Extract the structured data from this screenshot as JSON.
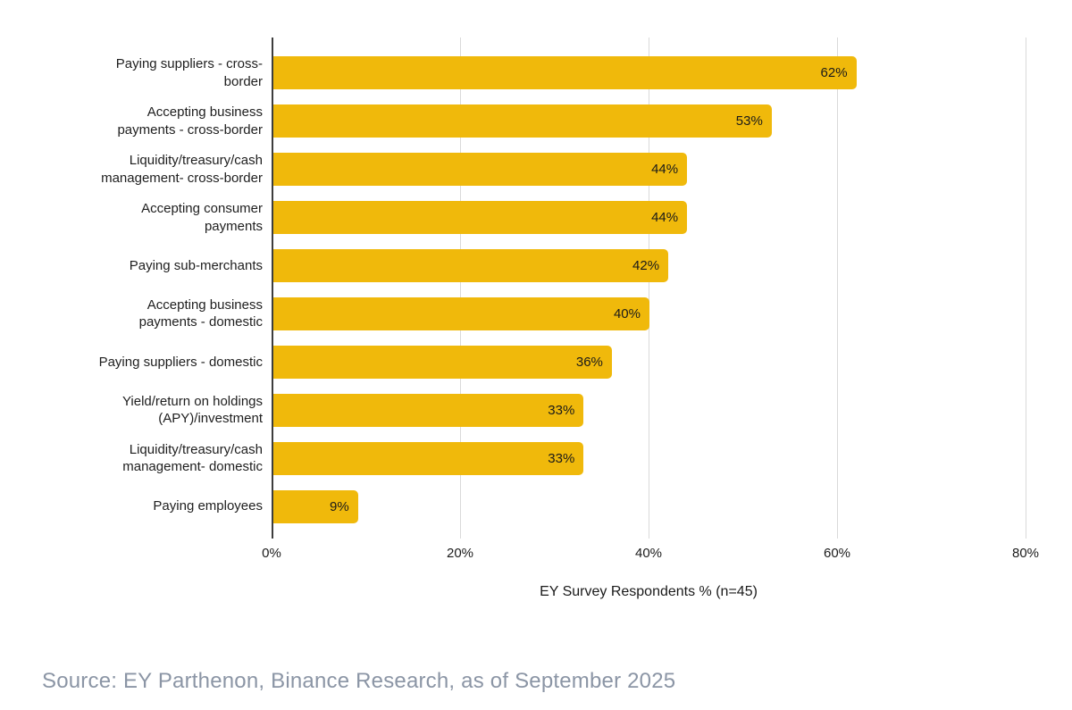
{
  "chart_data": {
    "type": "bar",
    "orientation": "horizontal",
    "categories": [
      [
        "Paying suppliers - cross-",
        "border"
      ],
      [
        "Accepting business",
        "payments - cross-border"
      ],
      [
        "Liquidity/treasury/cash",
        "management- cross-border"
      ],
      [
        "Accepting consumer",
        "payments"
      ],
      [
        "Paying sub-merchants"
      ],
      [
        "Accepting business",
        "payments - domestic"
      ],
      [
        "Paying suppliers - domestic"
      ],
      [
        "Yield/return on holdings",
        "(APY)/investment"
      ],
      [
        "Liquidity/treasury/cash",
        "management- domestic"
      ],
      [
        "Paying employees"
      ]
    ],
    "values": [
      62,
      53,
      44,
      44,
      42,
      40,
      36,
      33,
      33,
      9
    ],
    "value_labels": [
      "62%",
      "53%",
      "44%",
      "44%",
      "42%",
      "40%",
      "36%",
      "33%",
      "33%",
      "9%"
    ],
    "xlabel": "EY Survey Respondents % (n=45)",
    "x_ticks": [
      {
        "value": 0,
        "label": "0%"
      },
      {
        "value": 20,
        "label": "20%"
      },
      {
        "value": 40,
        "label": "40%"
      },
      {
        "value": 60,
        "label": "60%"
      },
      {
        "value": 80,
        "label": "80%"
      }
    ],
    "xlim": [
      0,
      80
    ],
    "grid": true,
    "legend": false,
    "bar_color": "#F0B90B",
    "value_label_color": "#1a1a1a",
    "gridline_color": "#d9d9d9",
    "axis_line_color": "#3d3d3d"
  },
  "source": {
    "text": "Source: EY Parthenon, Binance Research, as of September 2025",
    "color": "#8B95A5"
  }
}
